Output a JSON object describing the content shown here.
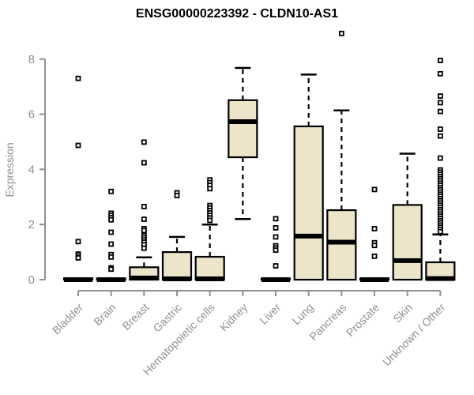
{
  "chart_data": {
    "type": "boxplot",
    "title": "ENSG00000223392 - CLDN10-AS1",
    "ylabel": "Expression",
    "xlabel": "",
    "ylim": [
      -0.4,
      9.0
    ],
    "yticks": [
      0,
      2,
      4,
      6,
      8
    ],
    "grid": false,
    "legend": "none",
    "colors": {
      "box_fill": "#ece5c9",
      "box_stroke": "#000000",
      "median": "#000000",
      "whisker": "#000000",
      "outlier_stroke": "#000000",
      "outlier_fill": "#ffffff",
      "axis": "#919191",
      "title": "#000000"
    },
    "categories": [
      "Bladder",
      "Brain",
      "Breast",
      "Gastric",
      "Hematopoietic cells",
      "Kidney",
      "Liver",
      "Lung",
      "Pancreas",
      "Prostate",
      "Skin",
      "Unknown / Other"
    ],
    "boxes": [
      {
        "label": "Bladder",
        "q1": 0,
        "median": 0,
        "q3": 0.05,
        "whisker_low": 0,
        "whisker_high": 0.05,
        "outliers": [
          7.3,
          4.87,
          1.38,
          0.93,
          0.86,
          0.79
        ]
      },
      {
        "label": "Brain",
        "q1": 0,
        "median": 0,
        "q3": 0.04,
        "whisker_low": 0,
        "whisker_high": 0.04,
        "outliers": [
          3.2,
          2.41,
          2.33,
          2.25,
          2.17,
          1.72,
          1.29,
          0.91,
          0.82,
          0.43,
          0.38
        ]
      },
      {
        "label": "Breast",
        "q1": 0,
        "median": 0.06,
        "q3": 0.45,
        "whisker_low": 0,
        "whisker_high": 0.81,
        "outliers": [
          4.99,
          4.24,
          2.65,
          2.19,
          1.85,
          1.78,
          1.6,
          1.52,
          1.44,
          1.36,
          1.27,
          1.14
        ]
      },
      {
        "label": "Gastric",
        "q1": 0,
        "median": 0.03,
        "q3": 1.0,
        "whisker_low": 0,
        "whisker_high": 1.55,
        "outliers": [
          3.15,
          3.05
        ]
      },
      {
        "label": "Hematopoietic cells",
        "q1": 0,
        "median": 0.03,
        "q3": 0.83,
        "whisker_low": 0,
        "whisker_high": 2.0,
        "outliers": [
          3.62,
          3.52,
          3.42,
          3.3,
          2.69,
          2.6,
          2.51,
          2.42,
          2.33,
          2.24,
          2.15
        ]
      },
      {
        "label": "Kidney",
        "q1": 4.44,
        "median": 5.73,
        "q3": 6.51,
        "whisker_low": 2.2,
        "whisker_high": 7.68,
        "outliers": []
      },
      {
        "label": "Liver",
        "q1": 0,
        "median": 0,
        "q3": 0.04,
        "whisker_low": 0,
        "whisker_high": 0.04,
        "outliers": [
          2.21,
          1.88,
          1.55,
          1.23,
          1.15,
          1.07,
          0.5
        ]
      },
      {
        "label": "Lung",
        "q1": 0,
        "median": 1.58,
        "q3": 5.56,
        "whisker_low": 0,
        "whisker_high": 7.44,
        "outliers": []
      },
      {
        "label": "Pancreas",
        "q1": 0,
        "median": 1.36,
        "q3": 2.52,
        "whisker_low": 0,
        "whisker_high": 6.14,
        "outliers": [
          8.93
        ]
      },
      {
        "label": "Prostate",
        "q1": 0,
        "median": 0,
        "q3": 0.04,
        "whisker_low": 0,
        "whisker_high": 0.04,
        "outliers": [
          3.27,
          1.85,
          1.34,
          1.24,
          0.85
        ]
      },
      {
        "label": "Skin",
        "q1": 0,
        "median": 0.69,
        "q3": 2.71,
        "whisker_low": 0,
        "whisker_high": 4.57,
        "outliers": []
      },
      {
        "label": "Unknown / Other",
        "q1": 0,
        "median": 0.04,
        "q3": 0.63,
        "whisker_low": 0,
        "whisker_high": 1.64,
        "outliers": [
          7.95,
          7.47,
          6.66,
          6.42,
          6.1,
          5.46,
          5.21,
          4.41,
          3.98,
          3.9,
          3.82,
          3.74,
          3.66,
          3.58,
          3.5,
          3.42,
          3.34,
          3.26,
          3.18,
          3.1,
          3.02,
          2.94,
          2.86,
          2.78,
          2.7,
          2.62,
          2.54,
          2.46,
          2.38,
          2.3,
          2.22,
          2.14,
          2.06,
          1.98,
          1.9,
          1.82,
          1.74
        ]
      }
    ]
  }
}
